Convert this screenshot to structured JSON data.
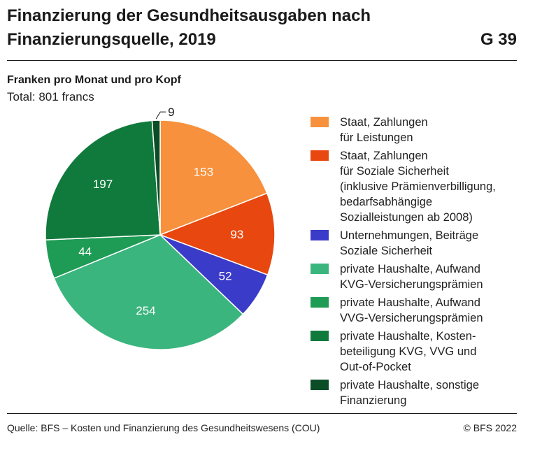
{
  "header": {
    "title": "Finanzierung der Gesundheitsausgaben nach Finanzierungsquelle, 2019",
    "figure_number": "G 39"
  },
  "chart_data": {
    "type": "pie",
    "title": "Finanzierung der Gesundheitsausgaben nach Finanzierungsquelle, 2019",
    "subtitle": "Franken pro Monat und pro Kopf",
    "total_label": "Total: 801 francs",
    "start_angle_deg": 0,
    "direction": "clockwise",
    "legend_position": "right",
    "slices": [
      {
        "label": "Staat, Zahlungen\nfür Leistungen",
        "value": 153,
        "color": "#f7913d",
        "label_color": "#ffffff"
      },
      {
        "label": "Staat, Zahlungen\nfür Soziale Sicherheit\n(inklusive Prämienverbilligung,\nbedarfsabhängige\nSozialleistungen ab 2008)",
        "value": 93,
        "color": "#e8470f",
        "label_color": "#ffffff"
      },
      {
        "label": "Unternehmungen, Beiträge\nSoziale Sicherheit",
        "value": 52,
        "color": "#3b3bc9",
        "label_color": "#ffffff"
      },
      {
        "label": "private Haushalte, Aufwand\nKVG-Versicherungsprämien",
        "value": 254,
        "color": "#3bb57e",
        "label_color": "#ffffff"
      },
      {
        "label": "private Haushalte, Aufwand\nVVG-Versicherungsprämien",
        "value": 44,
        "color": "#1e9b55",
        "label_color": "#ffffff"
      },
      {
        "label": "private Haushalte, Kosten-\nbeteiligung KVG, VVG und\nOut-of-Pocket",
        "value": 197,
        "color": "#107a3c",
        "label_color": "#ffffff"
      },
      {
        "label": "private Haushalte, sonstige\nFinanzierung",
        "value": 9,
        "color": "#0b4d27",
        "label_color": "#1a1a1a",
        "label_outside": true
      }
    ]
  },
  "footer": {
    "source": "Quelle: BFS – Kosten und Finanzierung des Gesundheitswesens (COU)",
    "copyright": "© BFS 2022"
  }
}
